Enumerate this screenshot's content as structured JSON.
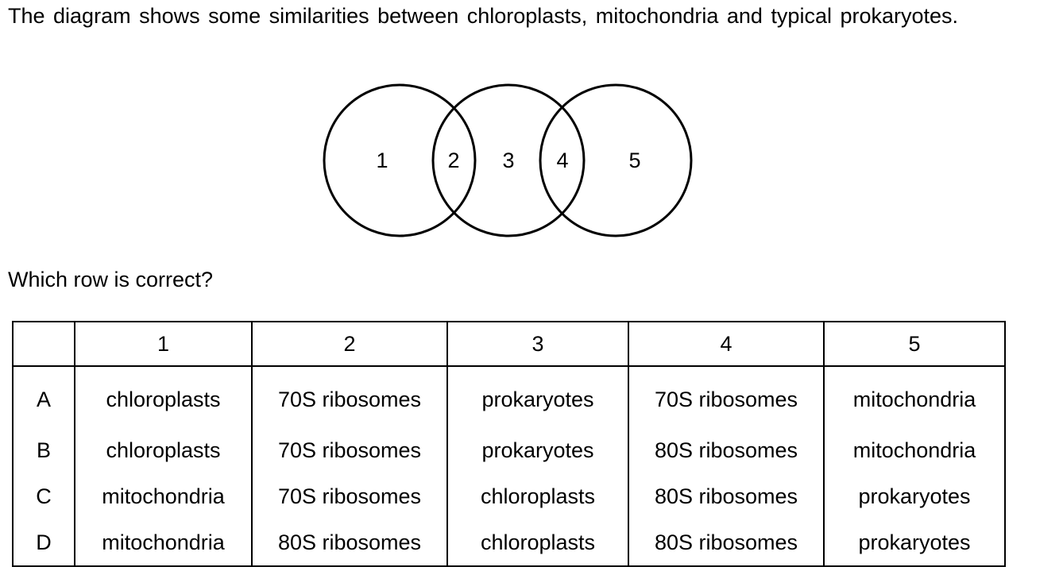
{
  "question": {
    "intro": "The diagram shows some similarities between chloroplasts, mitochondria and typical prokaryotes.",
    "prompt": "Which row is correct?"
  },
  "venn": {
    "region_labels": [
      "1",
      "2",
      "3",
      "4",
      "5"
    ]
  },
  "table": {
    "headers": [
      "",
      "1",
      "2",
      "3",
      "4",
      "5"
    ],
    "rows": [
      {
        "letter": "A",
        "cells": [
          "chloroplasts",
          "70S ribosomes",
          "prokaryotes",
          "70S ribosomes",
          "mitochondria"
        ]
      },
      {
        "letter": "B",
        "cells": [
          "chloroplasts",
          "70S ribosomes",
          "prokaryotes",
          "80S ribosomes",
          "mitochondria"
        ]
      },
      {
        "letter": "C",
        "cells": [
          "mitochondria",
          "70S ribosomes",
          "chloroplasts",
          "80S ribosomes",
          "prokaryotes"
        ]
      },
      {
        "letter": "D",
        "cells": [
          "mitochondria",
          "80S ribosomes",
          "chloroplasts",
          "80S ribosomes",
          "prokaryotes"
        ]
      }
    ]
  }
}
